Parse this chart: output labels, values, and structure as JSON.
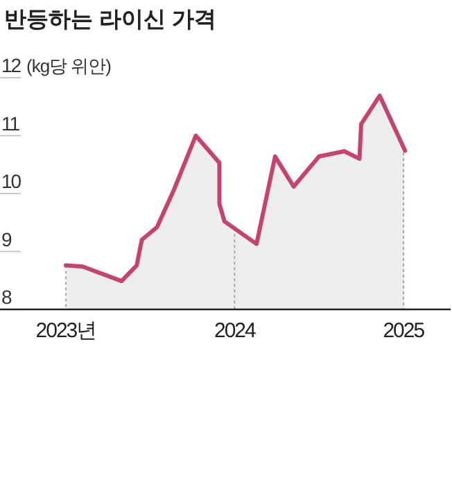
{
  "chart_data": {
    "type": "area",
    "title": "반등하는 라이신 가격",
    "ylabel": "(kg당 위안)",
    "x": [
      2023.0,
      2023.1,
      2023.33,
      2023.42,
      2023.45,
      2023.54,
      2023.64,
      2023.77,
      2023.91,
      2023.91,
      2023.94,
      2024.13,
      2024.24,
      2024.35,
      2024.5,
      2024.65,
      2024.74,
      2024.75,
      2024.86,
      2025.01
    ],
    "series": [
      {
        "color": "#c4446f",
        "values": [
          8.76,
          8.74,
          8.49,
          8.76,
          9.2,
          9.42,
          10.06,
          11.0,
          10.53,
          9.82,
          9.52,
          9.13,
          10.64,
          10.12,
          10.64,
          10.73,
          10.6,
          11.2,
          11.69,
          10.74
        ]
      }
    ],
    "xlim": [
      2022.61,
      2025.28
    ],
    "xticks": [
      {
        "value": 2023,
        "label": "2023년"
      },
      2024,
      2025
    ],
    "ylim": [
      8,
      12
    ],
    "yticks": [
      8,
      9,
      10,
      11,
      12
    ],
    "ref_lines": [
      {
        "axis": "x",
        "value": 2023,
        "color": "#999999",
        "line_style": "dashed"
      },
      {
        "axis": "x",
        "value": 2024,
        "color": "#999999",
        "line_style": "dashed"
      },
      {
        "axis": "x",
        "value": 2025,
        "color": "#999999",
        "line_style": "dashed"
      }
    ]
  }
}
